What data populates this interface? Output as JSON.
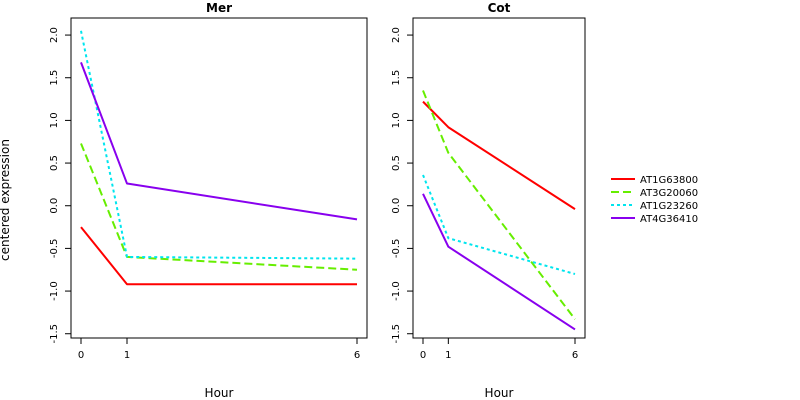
{
  "chart_data": [
    {
      "type": "line",
      "title": "Mer",
      "xlabel": "Hour",
      "ylabel": "centered expression",
      "categories": [
        "0",
        "1",
        "6"
      ],
      "ylim": [
        -1.55,
        2.2
      ],
      "yticks": [
        "-1.5",
        "-1.0",
        "-0.5",
        "0.0",
        "0.5",
        "1.0",
        "1.5",
        "2.0"
      ],
      "ytick_values": [
        -1.5,
        -1.0,
        -0.5,
        0.0,
        0.5,
        1.0,
        1.5,
        2.0
      ],
      "grid": false,
      "series": [
        {
          "name": "AT1G63800",
          "values": [
            -0.25,
            -0.92,
            -0.92
          ],
          "color": "#ff0000",
          "dash": "solid"
        },
        {
          "name": "AT3G20060",
          "values": [
            0.73,
            -0.6,
            -0.75
          ],
          "color": "#66ee00",
          "dash": "dashed"
        },
        {
          "name": "AT1G23260",
          "values": [
            2.05,
            -0.6,
            -0.62
          ],
          "color": "#00e5ee",
          "dash": "dotted"
        },
        {
          "name": "AT4G36410",
          "values": [
            1.68,
            0.26,
            -0.16
          ],
          "color": "#8800ee",
          "dash": "solid"
        }
      ]
    },
    {
      "type": "line",
      "title": "Cot",
      "xlabel": "Hour",
      "ylabel": "",
      "categories": [
        "0",
        "1",
        "6"
      ],
      "ylim": [
        -1.55,
        2.2
      ],
      "yticks": [
        "-1.5",
        "-1.0",
        "-0.5",
        "0.0",
        "0.5",
        "1.0",
        "1.5",
        "2.0"
      ],
      "ytick_values": [
        -1.5,
        -1.0,
        -0.5,
        0.0,
        0.5,
        1.0,
        1.5,
        2.0
      ],
      "grid": false,
      "series": [
        {
          "name": "AT1G63800",
          "values": [
            1.22,
            0.92,
            -0.04
          ],
          "color": "#ff0000",
          "dash": "solid"
        },
        {
          "name": "AT3G20060",
          "values": [
            1.35,
            0.62,
            -1.33
          ],
          "color": "#66ee00",
          "dash": "dashed"
        },
        {
          "name": "AT1G23260",
          "values": [
            0.36,
            -0.38,
            -0.8
          ],
          "color": "#00e5ee",
          "dash": "dotted"
        },
        {
          "name": "AT4G36410",
          "values": [
            0.14,
            -0.48,
            -1.45
          ],
          "color": "#8800ee",
          "dash": "solid"
        }
      ]
    }
  ],
  "legend": {
    "placement": "right",
    "items": [
      {
        "label": "AT1G63800",
        "color": "#ff0000",
        "dash": "solid"
      },
      {
        "label": "AT3G20060",
        "color": "#66ee00",
        "dash": "dashed"
      },
      {
        "label": "AT1G23260",
        "color": "#00e5ee",
        "dash": "dotted"
      },
      {
        "label": "AT4G36410",
        "color": "#8800ee",
        "dash": "solid"
      }
    ]
  }
}
